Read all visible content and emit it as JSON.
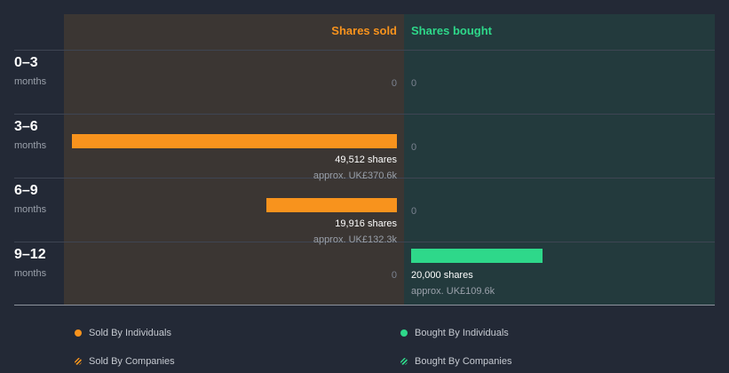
{
  "chart_data": {
    "type": "bar",
    "orientation": "horizontal",
    "columns": {
      "sold": "Shares sold",
      "bought": "Shares bought"
    },
    "rows": [
      {
        "period": "0–3",
        "unit": "months",
        "sold_shares": 0,
        "sold_label": "0",
        "sold_approx": "",
        "bought_shares": 0,
        "bought_label": "0",
        "bought_approx": ""
      },
      {
        "period": "3–6",
        "unit": "months",
        "sold_shares": 49512,
        "sold_label": "49,512 shares",
        "sold_approx": "approx. UK£370.6k",
        "bought_shares": 0,
        "bought_label": "0",
        "bought_approx": ""
      },
      {
        "period": "6–9",
        "unit": "months",
        "sold_shares": 19916,
        "sold_label": "19,916 shares",
        "sold_approx": "approx. UK£132.3k",
        "bought_shares": 0,
        "bought_label": "0",
        "bought_approx": ""
      },
      {
        "period": "9–12",
        "unit": "months",
        "sold_shares": 0,
        "sold_label": "0",
        "sold_approx": "",
        "bought_shares": 20000,
        "bought_label": "20,000 shares",
        "bought_approx": "approx. UK£109.6k"
      }
    ],
    "max_shares": 49512,
    "legend": [
      {
        "label": "Sold By Individuals",
        "color": "#f8931d",
        "style": "dot"
      },
      {
        "label": "Sold By Companies",
        "color": "#f8931d",
        "style": "hatched"
      },
      {
        "label": "Bought By Individuals",
        "color": "#2ed88a",
        "style": "dot"
      },
      {
        "label": "Bought By Companies",
        "color": "#2ed88a",
        "style": "hatched"
      }
    ]
  }
}
